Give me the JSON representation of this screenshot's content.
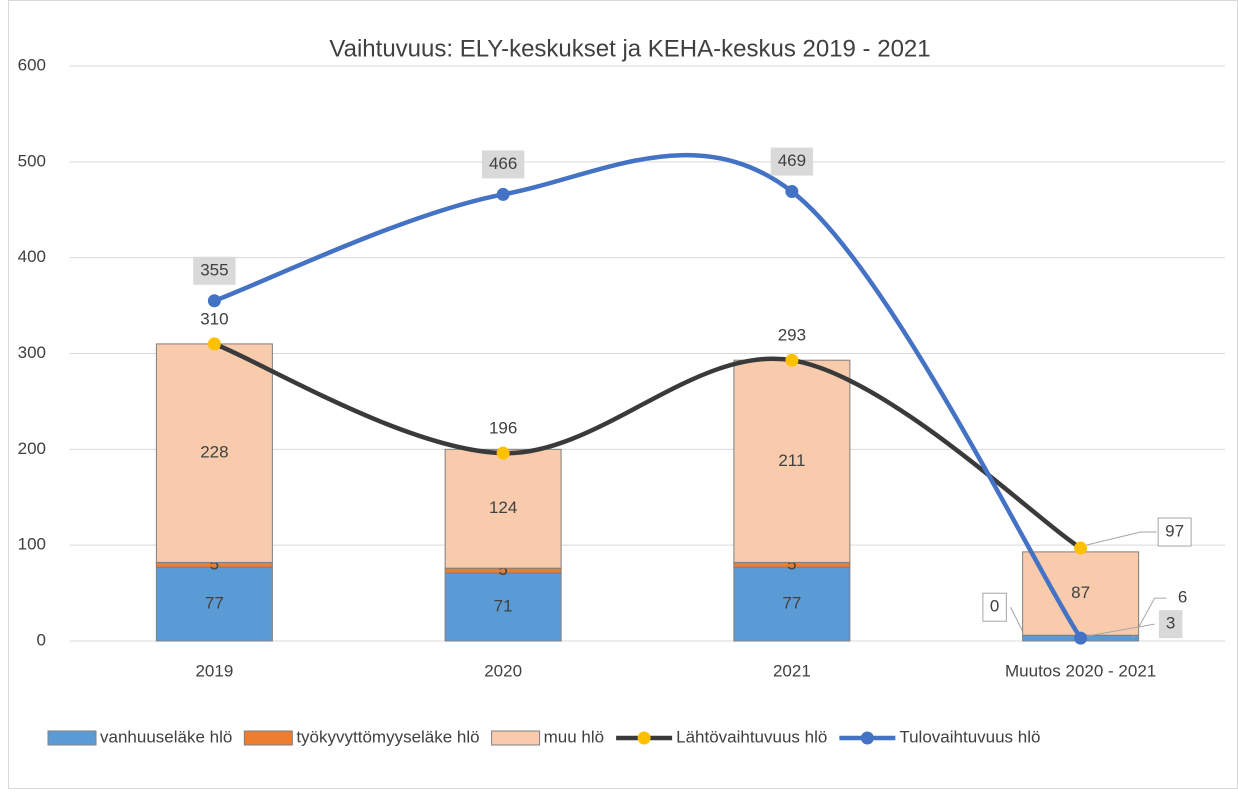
{
  "chart_data": {
    "type": "bar",
    "title": "Vaihtuvuus: ELY-keskukset ja KEHA-keskus 2019 - 2021",
    "categories": [
      "2019",
      "2020",
      "2021",
      "Muutos 2020 - 2021"
    ],
    "series": [
      {
        "name": "vanhuuseläke hlö",
        "type": "bar",
        "color": "#5b9bd5",
        "values": [
          77,
          71,
          77,
          6
        ]
      },
      {
        "name": "työkyvyttömyyseläke hlö",
        "type": "bar",
        "color": "#ed7d31",
        "values": [
          5,
          5,
          5,
          0
        ]
      },
      {
        "name": "muu hlö",
        "type": "bar",
        "color": "#f8cbad",
        "values": [
          228,
          124,
          211,
          87
        ]
      },
      {
        "name": "Lähtövaihtuvuus hlö",
        "type": "line",
        "color": "#3a3a3a",
        "marker_color": "#ffc000",
        "values": [
          310,
          196,
          293,
          97
        ]
      },
      {
        "name": "Tulovaihtuvuus hlö",
        "type": "line",
        "color": "#4472c4",
        "marker_color": "#4472c4",
        "values": [
          355,
          466,
          469,
          3
        ]
      }
    ],
    "ylim": [
      0,
      600
    ],
    "yticks": [
      0,
      100,
      200,
      300,
      400,
      500,
      600
    ],
    "grid": true,
    "legend": "bottom",
    "smooth": true
  }
}
